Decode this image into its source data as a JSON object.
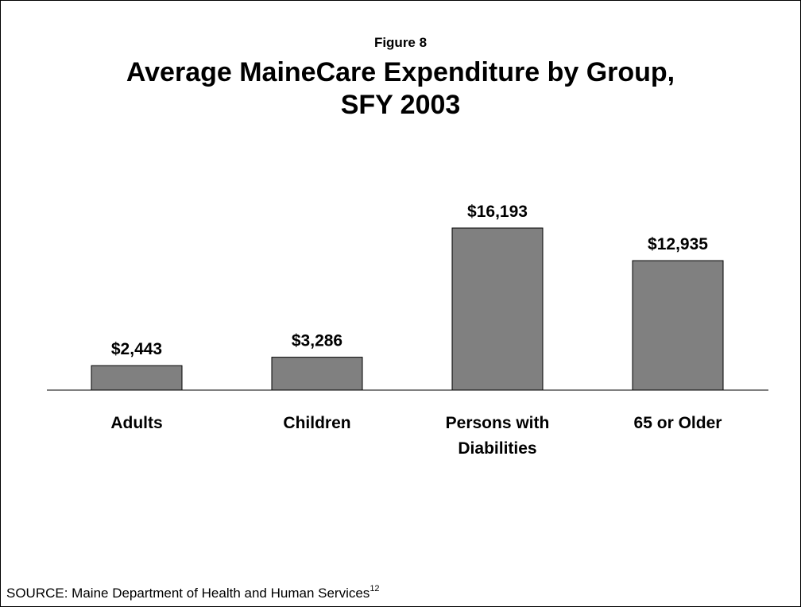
{
  "figure_label": "Figure 8",
  "title_lines": [
    "Average MaineCare Expenditure by Group,",
    "SFY 2003"
  ],
  "source": {
    "text": "SOURCE: Maine Department of Health and Human Services",
    "note": "12"
  },
  "bar_color": "#808080",
  "chart_data": {
    "type": "bar",
    "categories": [
      [
        "Adults"
      ],
      [
        "Children"
      ],
      [
        "Persons with",
        "Diabilities"
      ],
      [
        "65 or Older"
      ]
    ],
    "values": [
      2443,
      3286,
      16193,
      12935
    ],
    "value_labels": [
      "$2,443",
      "$3,286",
      "$16,193",
      "$12,935"
    ],
    "title": "Average MaineCare Expenditure by Group, SFY 2003",
    "xlabel": "",
    "ylabel": "",
    "ylim": [
      0,
      20000
    ],
    "grid": false,
    "legend": "none"
  }
}
